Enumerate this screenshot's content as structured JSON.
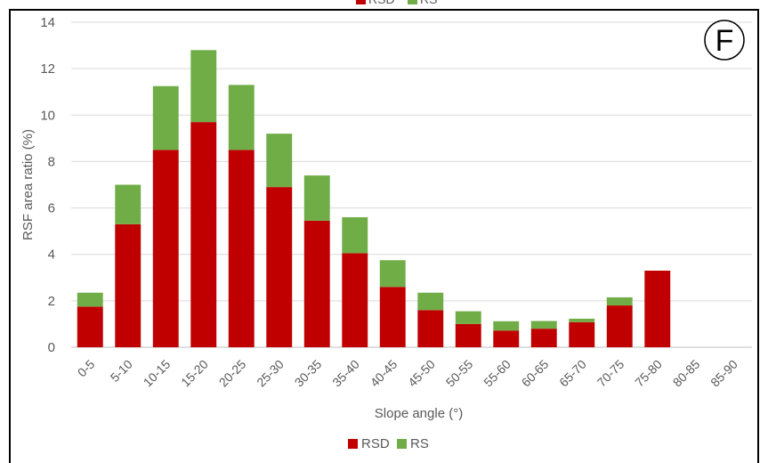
{
  "chart_data": {
    "type": "bar",
    "stacked": true,
    "panel_label": "F",
    "xlabel": "Slope angle (°)",
    "ylabel": "RSF area ratio (%)",
    "ylim": [
      0,
      14
    ],
    "yticks": [
      0,
      2,
      4,
      6,
      8,
      10,
      12,
      14
    ],
    "grid": true,
    "legend_placement": "bottom",
    "categories": [
      "0-5",
      "5-10",
      "10-15",
      "15-20",
      "20-25",
      "25-30",
      "30-35",
      "35-40",
      "40-45",
      "45-50",
      "50-55",
      "55-60",
      "60-65",
      "65-70",
      "70-75",
      "75-80",
      "80-85",
      "85-90"
    ],
    "series": [
      {
        "name": "RSD",
        "color": "#c00000",
        "values": [
          1.75,
          5.3,
          8.5,
          9.7,
          8.5,
          6.9,
          5.45,
          4.05,
          2.6,
          1.6,
          1.0,
          0.72,
          0.8,
          1.08,
          1.8,
          3.3,
          0,
          0
        ]
      },
      {
        "name": "RS",
        "color": "#70ad47",
        "values": [
          0.6,
          1.7,
          2.75,
          3.1,
          2.8,
          2.3,
          1.95,
          1.55,
          1.15,
          0.75,
          0.55,
          0.4,
          0.33,
          0.15,
          0.35,
          0,
          0,
          0
        ]
      }
    ],
    "legend_partial_top": [
      "RSD",
      "RS"
    ]
  }
}
